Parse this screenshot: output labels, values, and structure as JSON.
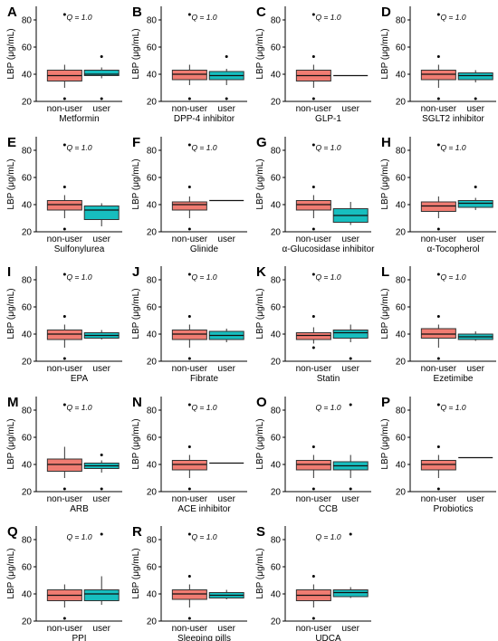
{
  "chart_data": [
    {
      "type": "box",
      "panel_letter": "A",
      "q_label": "Q = 1.0",
      "xlabel": "Metformin",
      "ylabel": "LBP (μg/mL)",
      "ylim": [
        20,
        90
      ],
      "yticks": [
        "20",
        "40",
        "60",
        "80"
      ],
      "categories": [
        "non-user",
        "user"
      ],
      "groups": [
        {
          "name": "non-user",
          "color": "#F07C72",
          "whisker_low": 30,
          "q1": 35,
          "median": 39,
          "q3": 43,
          "whisker_high": 47,
          "outliers": [
            22,
            84
          ]
        },
        {
          "name": "user",
          "color": "#17BEBF",
          "whisker_low": 37,
          "q1": 39,
          "median": 40,
          "q3": 43,
          "whisker_high": 45,
          "outliers": [
            22,
            53
          ]
        }
      ]
    },
    {
      "type": "box",
      "panel_letter": "B",
      "q_label": "Q = 1.0",
      "xlabel": "DPP-4 inhibitor",
      "ylabel": "LBP (μg/mL)",
      "ylim": [
        20,
        90
      ],
      "yticks": [
        "20",
        "40",
        "60",
        "80"
      ],
      "categories": [
        "non-user",
        "user"
      ],
      "groups": [
        {
          "name": "non-user",
          "color": "#F07C72",
          "whisker_low": 32,
          "q1": 36,
          "median": 40,
          "q3": 43,
          "whisker_high": 47,
          "outliers": [
            22,
            84
          ]
        },
        {
          "name": "user",
          "color": "#17BEBF",
          "whisker_low": 32,
          "q1": 36,
          "median": 39,
          "q3": 42,
          "whisker_high": 44,
          "outliers": [
            22,
            53
          ]
        }
      ]
    },
    {
      "type": "box",
      "panel_letter": "C",
      "q_label": "Q = 1.0",
      "xlabel": "GLP-1",
      "ylabel": "LBP (μg/mL)",
      "ylim": [
        20,
        90
      ],
      "yticks": [
        "20",
        "40",
        "60",
        "80"
      ],
      "categories": [
        "non-user",
        "user"
      ],
      "groups": [
        {
          "name": "non-user",
          "color": "#F07C72",
          "whisker_low": 30,
          "q1": 35,
          "median": 39,
          "q3": 43,
          "whisker_high": 47,
          "outliers": [
            22,
            53,
            84
          ]
        },
        {
          "name": "user",
          "color": "#17BEBF",
          "whisker_low": 39,
          "q1": 39,
          "median": 39,
          "q3": 39,
          "whisker_high": 39,
          "outliers": []
        }
      ]
    },
    {
      "type": "box",
      "panel_letter": "D",
      "q_label": "Q = 1.0",
      "xlabel": "SGLT2 inhibitor",
      "ylabel": "LBP (μg/mL)",
      "ylim": [
        20,
        90
      ],
      "yticks": [
        "20",
        "40",
        "60",
        "80"
      ],
      "categories": [
        "non-user",
        "user"
      ],
      "groups": [
        {
          "name": "non-user",
          "color": "#F07C72",
          "whisker_low": 30,
          "q1": 36,
          "median": 40,
          "q3": 43,
          "whisker_high": 47,
          "outliers": [
            22,
            53,
            84
          ]
        },
        {
          "name": "user",
          "color": "#17BEBF",
          "whisker_low": 34,
          "q1": 36,
          "median": 39,
          "q3": 41,
          "whisker_high": 43,
          "outliers": [
            22
          ]
        }
      ]
    },
    {
      "type": "box",
      "panel_letter": "E",
      "q_label": "Q = 1.0",
      "xlabel": "Sulfonylurea",
      "ylabel": "LBP (μg/mL)",
      "ylim": [
        20,
        90
      ],
      "yticks": [
        "20",
        "40",
        "60",
        "80"
      ],
      "categories": [
        "non-user",
        "user"
      ],
      "groups": [
        {
          "name": "non-user",
          "color": "#F07C72",
          "whisker_low": 30,
          "q1": 36,
          "median": 40,
          "q3": 43,
          "whisker_high": 47,
          "outliers": [
            22,
            53,
            84
          ]
        },
        {
          "name": "user",
          "color": "#17BEBF",
          "whisker_low": 24,
          "q1": 29,
          "median": 36,
          "q3": 39,
          "whisker_high": 41,
          "outliers": []
        }
      ]
    },
    {
      "type": "box",
      "panel_letter": "F",
      "q_label": "Q = 1.0",
      "xlabel": "Glinide",
      "ylabel": "LBP (μg/mL)",
      "ylim": [
        20,
        90
      ],
      "yticks": [
        "20",
        "40",
        "60",
        "80"
      ],
      "categories": [
        "non-user",
        "user"
      ],
      "groups": [
        {
          "name": "non-user",
          "color": "#F07C72",
          "whisker_low": 30,
          "q1": 36,
          "median": 40,
          "q3": 42,
          "whisker_high": 46,
          "outliers": [
            22,
            53,
            84
          ]
        },
        {
          "name": "user",
          "color": "#17BEBF",
          "whisker_low": 43,
          "q1": 43,
          "median": 43,
          "q3": 43,
          "whisker_high": 43,
          "outliers": []
        }
      ]
    },
    {
      "type": "box",
      "panel_letter": "G",
      "q_label": "Q = 1.0",
      "xlabel": "α-Glucosidase inhibitor",
      "ylabel": "LBP (μg/mL)",
      "ylim": [
        20,
        90
      ],
      "yticks": [
        "20",
        "40",
        "60",
        "80"
      ],
      "categories": [
        "non-user",
        "user"
      ],
      "groups": [
        {
          "name": "non-user",
          "color": "#F07C72",
          "whisker_low": 30,
          "q1": 36,
          "median": 40,
          "q3": 43,
          "whisker_high": 47,
          "outliers": [
            22,
            53,
            84
          ]
        },
        {
          "name": "user",
          "color": "#17BEBF",
          "whisker_low": 25,
          "q1": 27,
          "median": 32,
          "q3": 37,
          "whisker_high": 42,
          "outliers": []
        }
      ]
    },
    {
      "type": "box",
      "panel_letter": "H",
      "q_label": "Q = 1.0",
      "xlabel": "α-Tocopherol",
      "ylabel": "LBP (μg/mL)",
      "ylim": [
        20,
        90
      ],
      "yticks": [
        "20",
        "40",
        "60",
        "80"
      ],
      "categories": [
        "non-user",
        "user"
      ],
      "groups": [
        {
          "name": "non-user",
          "color": "#F07C72",
          "whisker_low": 30,
          "q1": 35,
          "median": 39,
          "q3": 42,
          "whisker_high": 46,
          "outliers": [
            22,
            84
          ]
        },
        {
          "name": "user",
          "color": "#17BEBF",
          "whisker_low": 36,
          "q1": 38,
          "median": 41,
          "q3": 43,
          "whisker_high": 45,
          "outliers": [
            53
          ]
        }
      ]
    },
    {
      "type": "box",
      "panel_letter": "I",
      "q_label": "Q = 1.0",
      "xlabel": "EPA",
      "ylabel": "LBP (μg/mL)",
      "ylim": [
        20,
        90
      ],
      "yticks": [
        "20",
        "40",
        "60",
        "80"
      ],
      "categories": [
        "non-user",
        "user"
      ],
      "groups": [
        {
          "name": "non-user",
          "color": "#F07C72",
          "whisker_low": 30,
          "q1": 36,
          "median": 40,
          "q3": 43,
          "whisker_high": 47,
          "outliers": [
            22,
            53,
            84
          ]
        },
        {
          "name": "user",
          "color": "#17BEBF",
          "whisker_low": 36,
          "q1": 37,
          "median": 39,
          "q3": 41,
          "whisker_high": 43,
          "outliers": []
        }
      ]
    },
    {
      "type": "box",
      "panel_letter": "J",
      "q_label": "Q = 1.0",
      "xlabel": "Fibrate",
      "ylabel": "LBP (μg/mL)",
      "ylim": [
        20,
        90
      ],
      "yticks": [
        "20",
        "40",
        "60",
        "80"
      ],
      "categories": [
        "non-user",
        "user"
      ],
      "groups": [
        {
          "name": "non-user",
          "color": "#F07C72",
          "whisker_low": 30,
          "q1": 36,
          "median": 40,
          "q3": 43,
          "whisker_high": 47,
          "outliers": [
            22,
            53,
            84
          ]
        },
        {
          "name": "user",
          "color": "#17BEBF",
          "whisker_low": 34,
          "q1": 36,
          "median": 39,
          "q3": 42,
          "whisker_high": 44,
          "outliers": []
        }
      ]
    },
    {
      "type": "box",
      "panel_letter": "K",
      "q_label": "Q = 1.0",
      "xlabel": "Statin",
      "ylabel": "LBP (μg/mL)",
      "ylim": [
        20,
        90
      ],
      "yticks": [
        "20",
        "40",
        "60",
        "80"
      ],
      "categories": [
        "non-user",
        "user"
      ],
      "groups": [
        {
          "name": "non-user",
          "color": "#F07C72",
          "whisker_low": 33,
          "q1": 36,
          "median": 39,
          "q3": 41,
          "whisker_high": 45,
          "outliers": [
            30,
            53,
            84
          ]
        },
        {
          "name": "user",
          "color": "#17BEBF",
          "whisker_low": 34,
          "q1": 37,
          "median": 41,
          "q3": 43,
          "whisker_high": 47,
          "outliers": [
            22
          ]
        }
      ]
    },
    {
      "type": "box",
      "panel_letter": "L",
      "q_label": "Q = 1.0",
      "xlabel": "Ezetimibe",
      "ylabel": "LBP (μg/mL)",
      "ylim": [
        20,
        90
      ],
      "yticks": [
        "20",
        "40",
        "60",
        "80"
      ],
      "categories": [
        "non-user",
        "user"
      ],
      "groups": [
        {
          "name": "non-user",
          "color": "#F07C72",
          "whisker_low": 30,
          "q1": 37,
          "median": 40,
          "q3": 44,
          "whisker_high": 47,
          "outliers": [
            22,
            53,
            84
          ]
        },
        {
          "name": "user",
          "color": "#17BEBF",
          "whisker_low": 35,
          "q1": 36,
          "median": 38,
          "q3": 40,
          "whisker_high": 42,
          "outliers": []
        }
      ]
    },
    {
      "type": "box",
      "panel_letter": "M",
      "q_label": "Q = 1.0",
      "xlabel": "ARB",
      "ylabel": "LBP (μg/mL)",
      "ylim": [
        20,
        90
      ],
      "yticks": [
        "20",
        "40",
        "60",
        "80"
      ],
      "categories": [
        "non-user",
        "user"
      ],
      "groups": [
        {
          "name": "non-user",
          "color": "#F07C72",
          "whisker_low": 30,
          "q1": 35,
          "median": 40,
          "q3": 44,
          "whisker_high": 53,
          "outliers": [
            22,
            84
          ]
        },
        {
          "name": "user",
          "color": "#17BEBF",
          "whisker_low": 34,
          "q1": 37,
          "median": 39,
          "q3": 41,
          "whisker_high": 43,
          "outliers": [
            22,
            47
          ]
        }
      ]
    },
    {
      "type": "box",
      "panel_letter": "N",
      "q_label": "Q = 1.0",
      "xlabel": "ACE inhibitor",
      "ylabel": "LBP (μg/mL)",
      "ylim": [
        20,
        90
      ],
      "yticks": [
        "20",
        "40",
        "60",
        "80"
      ],
      "categories": [
        "non-user",
        "user"
      ],
      "groups": [
        {
          "name": "non-user",
          "color": "#F07C72",
          "whisker_low": 30,
          "q1": 36,
          "median": 40,
          "q3": 43,
          "whisker_high": 47,
          "outliers": [
            22,
            53,
            84
          ]
        },
        {
          "name": "user",
          "color": "#17BEBF",
          "whisker_low": 41,
          "q1": 41,
          "median": 41,
          "q3": 41,
          "whisker_high": 41,
          "outliers": []
        }
      ]
    },
    {
      "type": "box",
      "panel_letter": "O",
      "q_label": "Q = 1.0",
      "xlabel": "CCB",
      "ylabel": "LBP (μg/mL)",
      "ylim": [
        20,
        90
      ],
      "yticks": [
        "20",
        "40",
        "60",
        "80"
      ],
      "categories": [
        "non-user",
        "user"
      ],
      "groups": [
        {
          "name": "non-user",
          "color": "#F07C72",
          "whisker_low": 30,
          "q1": 36,
          "median": 40,
          "q3": 43,
          "whisker_high": 47,
          "outliers": [
            22,
            53
          ]
        },
        {
          "name": "user",
          "color": "#17BEBF",
          "whisker_low": 30,
          "q1": 36,
          "median": 39,
          "q3": 42,
          "whisker_high": 47,
          "outliers": [
            22,
            84
          ]
        }
      ]
    },
    {
      "type": "box",
      "panel_letter": "P",
      "q_label": "Q = 1.0",
      "xlabel": "Probiotics",
      "ylabel": "LBP (μg/mL)",
      "ylim": [
        20,
        90
      ],
      "yticks": [
        "20",
        "40",
        "60",
        "80"
      ],
      "categories": [
        "non-user",
        "user"
      ],
      "groups": [
        {
          "name": "non-user",
          "color": "#F07C72",
          "whisker_low": 30,
          "q1": 36,
          "median": 40,
          "q3": 43,
          "whisker_high": 47,
          "outliers": [
            22,
            53,
            84
          ]
        },
        {
          "name": "user",
          "color": "#17BEBF",
          "whisker_low": 45,
          "q1": 45,
          "median": 45,
          "q3": 45,
          "whisker_high": 45,
          "outliers": []
        }
      ]
    },
    {
      "type": "box",
      "panel_letter": "Q",
      "q_label": "Q = 1.0",
      "xlabel": "PPI",
      "ylabel": "LBP (μg/mL)",
      "ylim": [
        20,
        90
      ],
      "yticks": [
        "20",
        "40",
        "60",
        "80"
      ],
      "categories": [
        "non-user",
        "user"
      ],
      "groups": [
        {
          "name": "non-user",
          "color": "#F07C72",
          "whisker_low": 30,
          "q1": 35,
          "median": 39,
          "q3": 43,
          "whisker_high": 47,
          "outliers": [
            22
          ]
        },
        {
          "name": "user",
          "color": "#17BEBF",
          "whisker_low": 32,
          "q1": 35,
          "median": 40,
          "q3": 43,
          "whisker_high": 53,
          "outliers": [
            84
          ]
        }
      ]
    },
    {
      "type": "box",
      "panel_letter": "R",
      "q_label": "Q = 1.0",
      "xlabel": "Sleeping pills",
      "ylabel": "LBP (μg/mL)",
      "ylim": [
        20,
        90
      ],
      "yticks": [
        "20",
        "40",
        "60",
        "80"
      ],
      "categories": [
        "non-user",
        "user"
      ],
      "groups": [
        {
          "name": "non-user",
          "color": "#F07C72",
          "whisker_low": 30,
          "q1": 36,
          "median": 40,
          "q3": 43,
          "whisker_high": 47,
          "outliers": [
            22,
            53,
            84
          ]
        },
        {
          "name": "user",
          "color": "#17BEBF",
          "whisker_low": 36,
          "q1": 37,
          "median": 39,
          "q3": 41,
          "whisker_high": 43,
          "outliers": []
        }
      ]
    },
    {
      "type": "box",
      "panel_letter": "S",
      "q_label": "Q = 1.0",
      "xlabel": "UDCA",
      "ylabel": "LBP (μg/mL)",
      "ylim": [
        20,
        90
      ],
      "yticks": [
        "20",
        "40",
        "60",
        "80"
      ],
      "categories": [
        "non-user",
        "user"
      ],
      "groups": [
        {
          "name": "non-user",
          "color": "#F07C72",
          "whisker_low": 30,
          "q1": 35,
          "median": 39,
          "q3": 43,
          "whisker_high": 47,
          "outliers": [
            22,
            53
          ]
        },
        {
          "name": "user",
          "color": "#17BEBF",
          "whisker_low": 37,
          "q1": 38,
          "median": 41,
          "q3": 43,
          "whisker_high": 45,
          "outliers": [
            84
          ]
        }
      ]
    }
  ]
}
